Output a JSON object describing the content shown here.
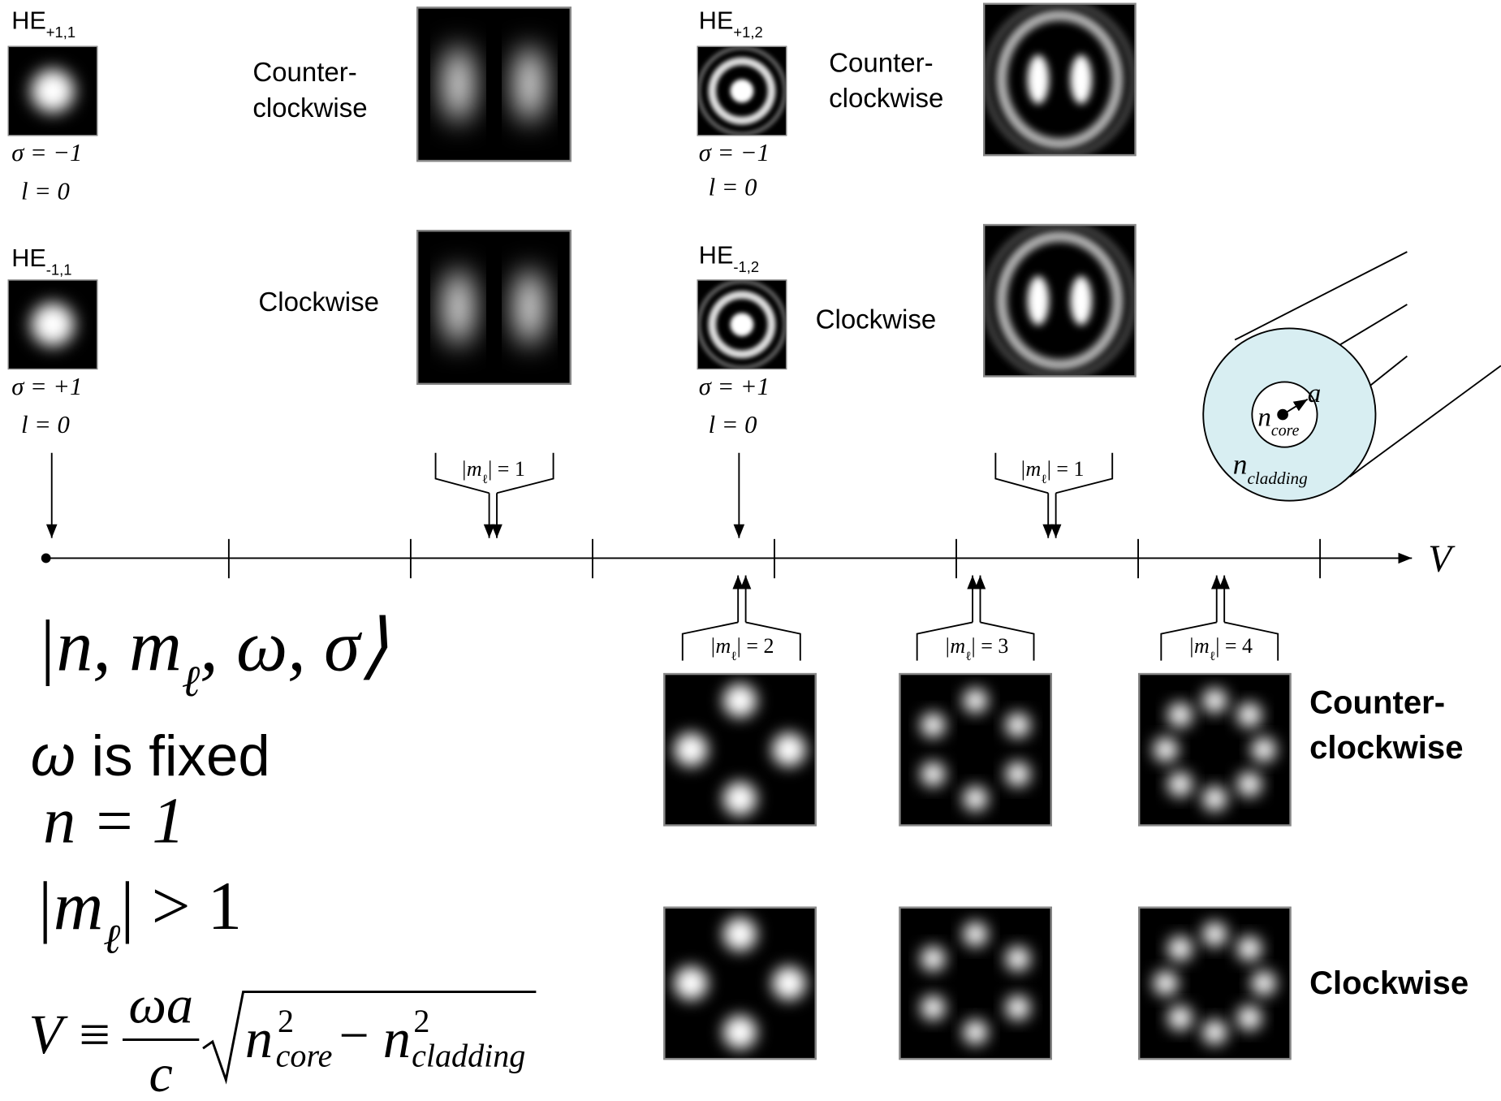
{
  "modes": [
    {
      "name": "HE",
      "index": "+1,1",
      "sigma": "σ = −1",
      "l": "l = 0"
    },
    {
      "name": "HE",
      "index": "-1,1",
      "sigma": "σ = +1",
      "l": "l = 0"
    },
    {
      "name": "HE",
      "index": "+1,2",
      "sigma": "σ = −1",
      "l": "l = 0"
    },
    {
      "name": "HE",
      "index": "-1,2",
      "sigma": "σ = +1",
      "l": "l = 0"
    }
  ],
  "rotation": {
    "counter": [
      "Counter-",
      "clockwise"
    ],
    "clockwise": "Clockwise"
  },
  "m_labels": [
    [
      "|m",
      "ℓ",
      "| = 1"
    ],
    [
      "|m",
      "ℓ",
      "| = 1"
    ],
    [
      "|m",
      "ℓ",
      "| = 2"
    ],
    [
      "|m",
      "ℓ",
      "| = 3"
    ],
    [
      "|m",
      "ℓ",
      "| = 4"
    ]
  ],
  "axis_label": "V",
  "fiber": {
    "core": [
      "n",
      "core"
    ],
    "radius": "a",
    "cladding": [
      "n",
      "cladding"
    ]
  },
  "formulas": {
    "ket": [
      "|n, m",
      "ℓ",
      ", ω, σ⟩"
    ],
    "fixed": [
      "ω",
      " is fixed"
    ],
    "n": "n = 1",
    "m": [
      "|m",
      "ℓ",
      "| > 1"
    ],
    "v": {
      "lhs": "V ≡",
      "num": "ωa",
      "den": "c",
      "core": [
        "n",
        "2",
        "core"
      ],
      "minus": "−",
      "cladding": [
        "n",
        "2",
        "cladding"
      ]
    }
  }
}
